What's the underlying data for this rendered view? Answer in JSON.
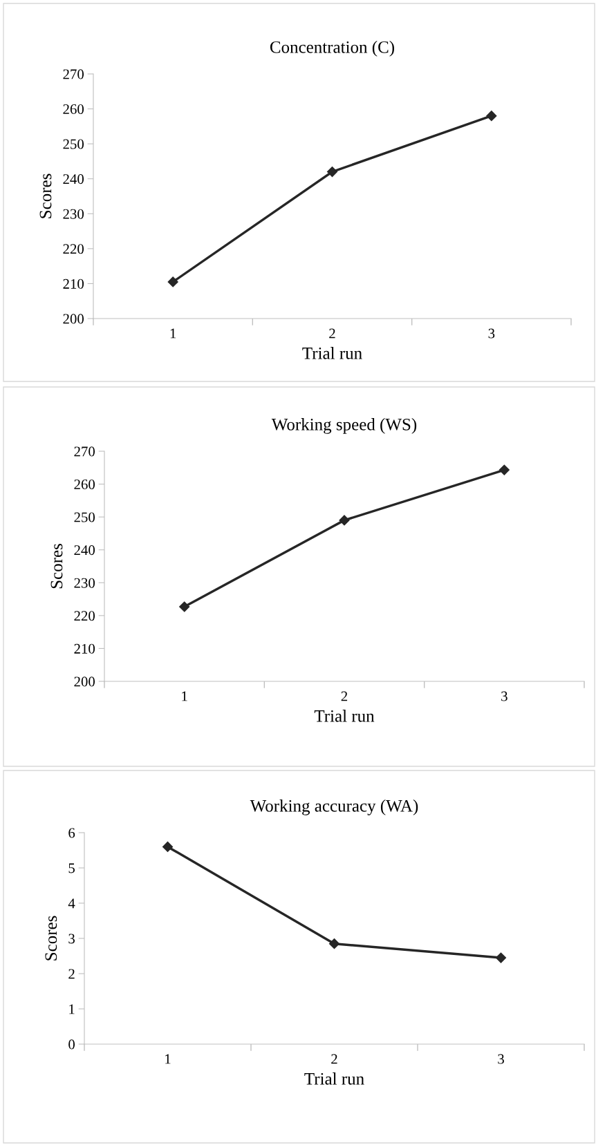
{
  "chart_data": [
    {
      "type": "line",
      "title": "Concentration (C)",
      "xlabel": "Trial run",
      "ylabel": "Scores",
      "categories": [
        "1",
        "2",
        "3"
      ],
      "values": [
        210.5,
        242,
        258
      ],
      "color": "#262626",
      "marker": "diamond",
      "line_style": "solid",
      "ylim": [
        200,
        270
      ],
      "yticks": [
        200,
        210,
        220,
        230,
        240,
        250,
        260,
        270
      ]
    },
    {
      "type": "line",
      "title": "Working speed (WS)",
      "xlabel": "Trial run",
      "ylabel": "Scores",
      "categories": [
        "1",
        "2",
        "3"
      ],
      "values": [
        222.7,
        249,
        264.3
      ],
      "color": "#262626",
      "marker": "diamond",
      "line_style": "solid",
      "ylim": [
        200,
        270
      ],
      "yticks": [
        200,
        210,
        220,
        230,
        240,
        250,
        260,
        270
      ]
    },
    {
      "type": "line",
      "title": "Working accuracy (WA)",
      "xlabel": "Trial run",
      "ylabel": "Scores",
      "categories": [
        "1",
        "2",
        "3"
      ],
      "values": [
        5.6,
        2.85,
        2.45
      ],
      "color": "#262626",
      "marker": "diamond",
      "line_style": "solid",
      "ylim": [
        0,
        6
      ],
      "yticks": [
        0,
        1,
        2,
        3,
        4,
        5,
        6
      ]
    }
  ]
}
